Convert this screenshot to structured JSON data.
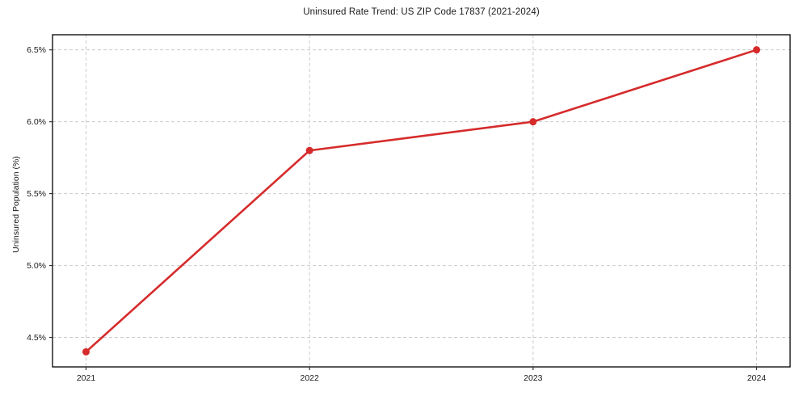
{
  "chart_data": {
    "type": "line",
    "title": "Uninsured Rate Trend: US ZIP Code 17837 (2021-2024)",
    "xlabel": "",
    "ylabel": "Uninsured Population (%)",
    "x": [
      2021,
      2022,
      2023,
      2024
    ],
    "series": [
      {
        "name": "uninsured-rate",
        "values": [
          4.4,
          5.8,
          6.0,
          6.5
        ]
      }
    ],
    "xticks": [
      2021,
      2022,
      2023,
      2024
    ],
    "xtick_labels": [
      "2021",
      "2022",
      "2023",
      "2024"
    ],
    "yticks": [
      4.5,
      5.0,
      5.5,
      6.0,
      6.5
    ],
    "ytick_labels": [
      "4.5%",
      "5.0%",
      "5.5%",
      "6.0%",
      "6.5%"
    ],
    "xlim": [
      2020.85,
      2024.15
    ],
    "ylim": [
      4.295,
      6.605
    ],
    "grid": true,
    "grid_style": "dashed",
    "legend": "none",
    "colors": {
      "line": "#d62b2b",
      "marker": "#d62b2b",
      "grid": "#cccccc",
      "spine": "#000000",
      "tick": "#333333",
      "text": "#1a1a1a",
      "background": "#ffffff"
    }
  }
}
